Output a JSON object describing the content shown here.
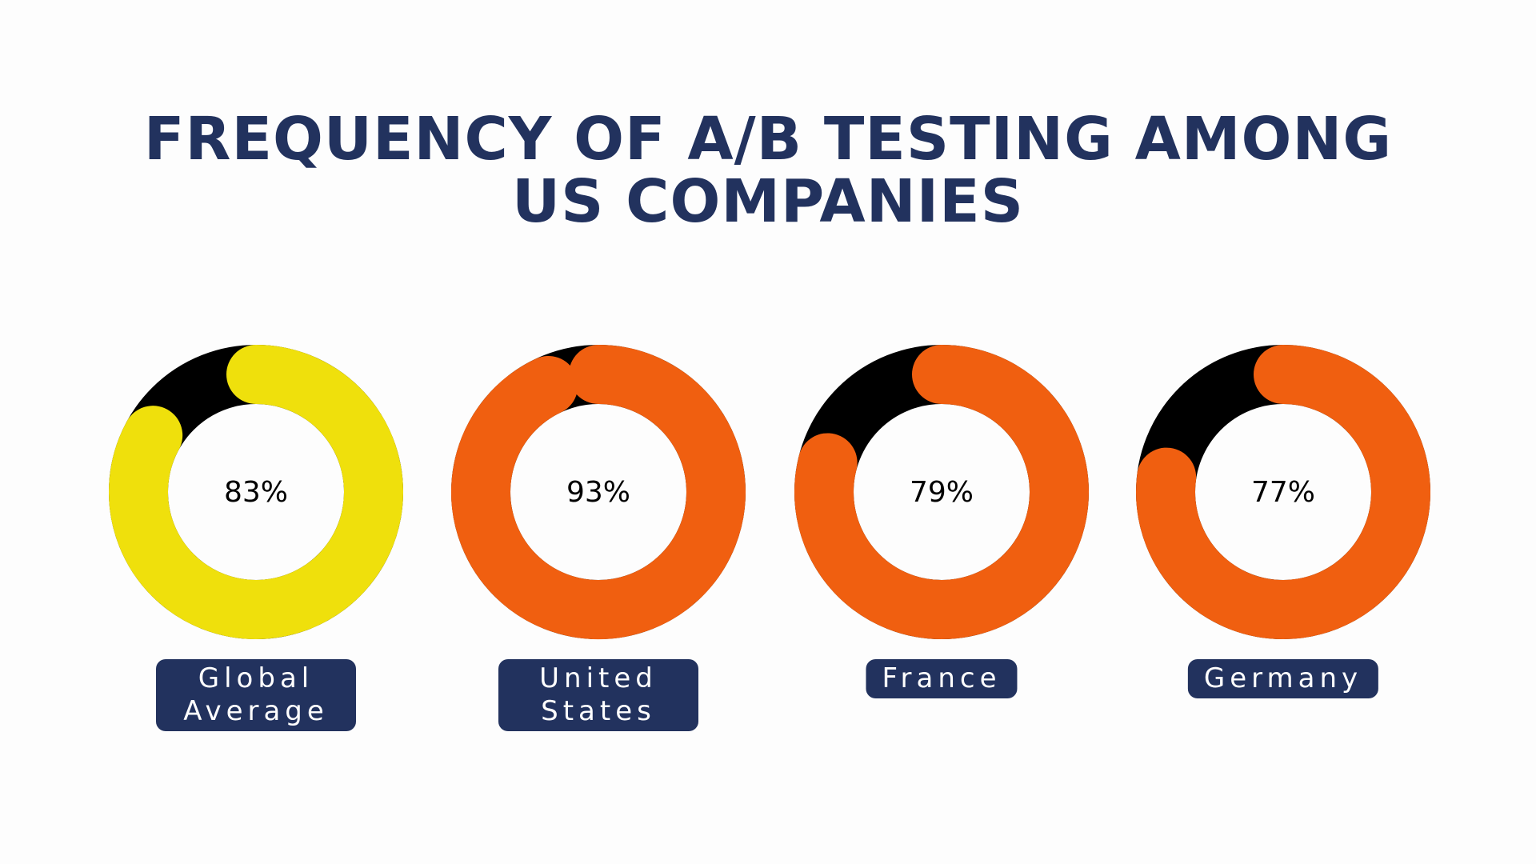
{
  "chart_data": {
    "type": "donut",
    "title": "FREQUENCY OF A/B TESTING AMONG US COMPANIES",
    "categories": [
      "Global Average",
      "United States",
      "France",
      "Germany"
    ],
    "values": [
      83,
      93,
      79,
      77
    ],
    "value_labels": [
      "83%",
      "93%",
      "79%",
      "77%"
    ],
    "colors": [
      "#efe00c",
      "#f05f10",
      "#f05f10",
      "#f05f10"
    ],
    "remainder_color": "#000000"
  }
}
